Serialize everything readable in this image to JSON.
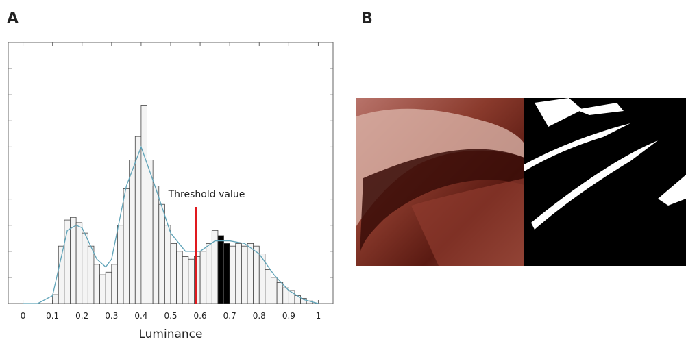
{
  "panel_labels": [
    "A",
    "B"
  ],
  "chart_data": {
    "type": "histogram",
    "x_label": "Luminance",
    "annotation": {
      "text": "Threshold value",
      "x": 0.585,
      "y": 37,
      "color": "#e0191e"
    },
    "bins": [
      0.1,
      0.12,
      0.14,
      0.16,
      0.18,
      0.2,
      0.22,
      0.24,
      0.26,
      0.28,
      0.3,
      0.32,
      0.34,
      0.36,
      0.38,
      0.4,
      0.42,
      0.44,
      0.46,
      0.48,
      0.5,
      0.52,
      0.54,
      0.56,
      0.58,
      0.6,
      0.62,
      0.64,
      0.66,
      0.68,
      0.7,
      0.72,
      0.74,
      0.76,
      0.78,
      0.8,
      0.82,
      0.84,
      0.86,
      0.88,
      0.9,
      0.92,
      0.94,
      0.96,
      0.98
    ],
    "values": [
      3.4,
      22,
      32,
      33,
      31,
      27,
      22,
      15,
      11,
      12,
      15,
      30,
      44,
      55,
      64,
      76,
      55,
      45,
      38,
      30,
      23,
      20,
      18,
      17,
      18,
      20,
      23,
      28,
      26,
      23,
      22,
      23,
      22,
      23,
      22,
      19,
      13,
      10,
      8,
      6,
      5,
      3,
      2,
      1
    ],
    "colors": [
      "#f4f4f4",
      "#f4f4f4",
      "#f4f4f4",
      "#f4f4f4",
      "#f4f4f4",
      "#f4f4f4",
      "#f4f4f4",
      "#f4f4f4",
      "#f4f4f4",
      "#f4f4f4",
      "#f4f4f4",
      "#f4f4f4",
      "#f4f4f4",
      "#f4f4f4",
      "#f4f4f4",
      "#f4f4f4",
      "#f4f4f4",
      "#f4f4f4",
      "#f4f4f4",
      "#f4f4f4",
      "#f4f4f4",
      "#f4f4f4",
      "#f4f4f4",
      "#f4f4f4",
      "#f4f4f4",
      "#f4f4f4",
      "#f4f4f4",
      "#f4f4f4",
      "#000000",
      "#000000",
      "#f4f4f4",
      "#f4f4f4",
      "#f4f4f4",
      "#f4f4f4",
      "#f4f4f4",
      "#f4f4f4",
      "#f4f4f4",
      "#f4f4f4",
      "#f4f4f4",
      "#f4f4f4",
      "#f4f4f4",
      "#f4f4f4",
      "#f4f4f4",
      "#f4f4f4"
    ],
    "density": {
      "color": "#5fa3b8",
      "x": [
        0,
        0.05,
        0.1,
        0.15,
        0.18,
        0.2,
        0.25,
        0.28,
        0.3,
        0.35,
        0.4,
        0.45,
        0.5,
        0.55,
        0.6,
        0.65,
        0.7,
        0.75,
        0.8,
        0.85,
        0.9,
        0.95,
        1
      ],
      "values": [
        0,
        0,
        3,
        28,
        30,
        29,
        17,
        14,
        17,
        45,
        60,
        44,
        27,
        20,
        20,
        24,
        24,
        23,
        19,
        11,
        5,
        1.5,
        0
      ]
    },
    "xlim": [
      -0.05,
      1.05
    ],
    "ylim": [
      0,
      100
    ],
    "xticks": [
      0,
      0.1,
      0.2,
      0.3,
      0.4,
      0.5,
      0.6,
      0.7,
      0.8,
      0.9,
      1
    ],
    "yticks": [
      0,
      10,
      20,
      30,
      40,
      50,
      60,
      70,
      80,
      90,
      100
    ]
  }
}
